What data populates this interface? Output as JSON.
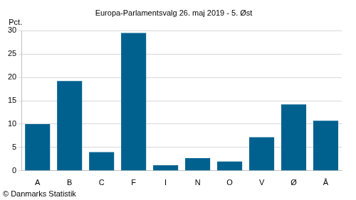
{
  "chart_data": {
    "type": "bar",
    "title": "Europa-Parlamentsvalg 26. maj 2019 - 5. Øst",
    "ylabel": "Pct.",
    "annotations": [
      "© Danmarks Statistik"
    ],
    "categories": [
      "A",
      "B",
      "C",
      "F",
      "I",
      "N",
      "O",
      "V",
      "Ø",
      "Å"
    ],
    "values": [
      10.0,
      19.2,
      4.0,
      29.5,
      1.2,
      2.7,
      2.0,
      7.2,
      14.2,
      10.7
    ],
    "color": "#00618f",
    "ylim": [
      0,
      30
    ],
    "yticks": [
      0,
      5,
      10,
      15,
      20,
      25,
      30
    ],
    "grid": true
  }
}
